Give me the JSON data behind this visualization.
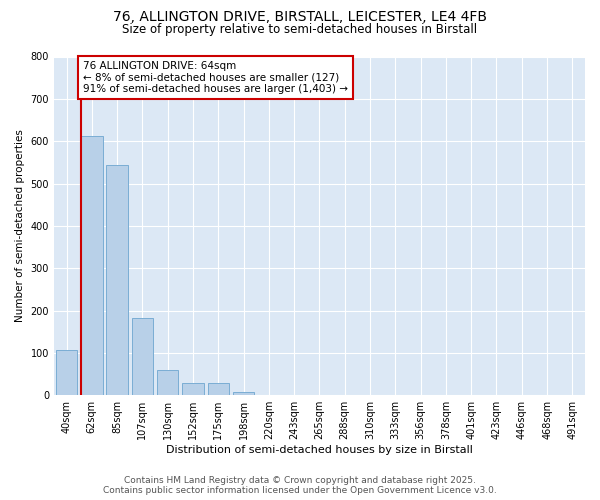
{
  "title1": "76, ALLINGTON DRIVE, BIRSTALL, LEICESTER, LE4 4FB",
  "title2": "Size of property relative to semi-detached houses in Birstall",
  "xlabel": "Distribution of semi-detached houses by size in Birstall",
  "ylabel": "Number of semi-detached properties",
  "categories": [
    "40sqm",
    "62sqm",
    "85sqm",
    "107sqm",
    "130sqm",
    "152sqm",
    "175sqm",
    "198sqm",
    "220sqm",
    "243sqm",
    "265sqm",
    "288sqm",
    "310sqm",
    "333sqm",
    "356sqm",
    "378sqm",
    "401sqm",
    "423sqm",
    "446sqm",
    "468sqm",
    "491sqm"
  ],
  "values": [
    107,
    613,
    543,
    183,
    60,
    28,
    28,
    8,
    0,
    0,
    0,
    0,
    0,
    0,
    0,
    0,
    0,
    0,
    0,
    0,
    0
  ],
  "bar_color": "#b8d0e8",
  "bar_edge_color": "#7aadd4",
  "annotation_text": "76 ALLINGTON DRIVE: 64sqm\n← 8% of semi-detached houses are smaller (127)\n91% of semi-detached houses are larger (1,403) →",
  "annotation_box_color": "#ffffff",
  "annotation_box_edge_color": "#cc0000",
  "vline_color": "#cc0000",
  "ylim": [
    0,
    800
  ],
  "yticks": [
    0,
    100,
    200,
    300,
    400,
    500,
    600,
    700,
    800
  ],
  "fig_bg_color": "#ffffff",
  "plot_bg_color": "#dce8f5",
  "grid_color": "#ffffff",
  "footer_line1": "Contains HM Land Registry data © Crown copyright and database right 2025.",
  "footer_line2": "Contains public sector information licensed under the Open Government Licence v3.0.",
  "title1_fontsize": 10,
  "title2_fontsize": 8.5,
  "annotation_fontsize": 7.5,
  "footer_fontsize": 6.5,
  "xlabel_fontsize": 8,
  "ylabel_fontsize": 7.5,
  "tick_fontsize": 7
}
